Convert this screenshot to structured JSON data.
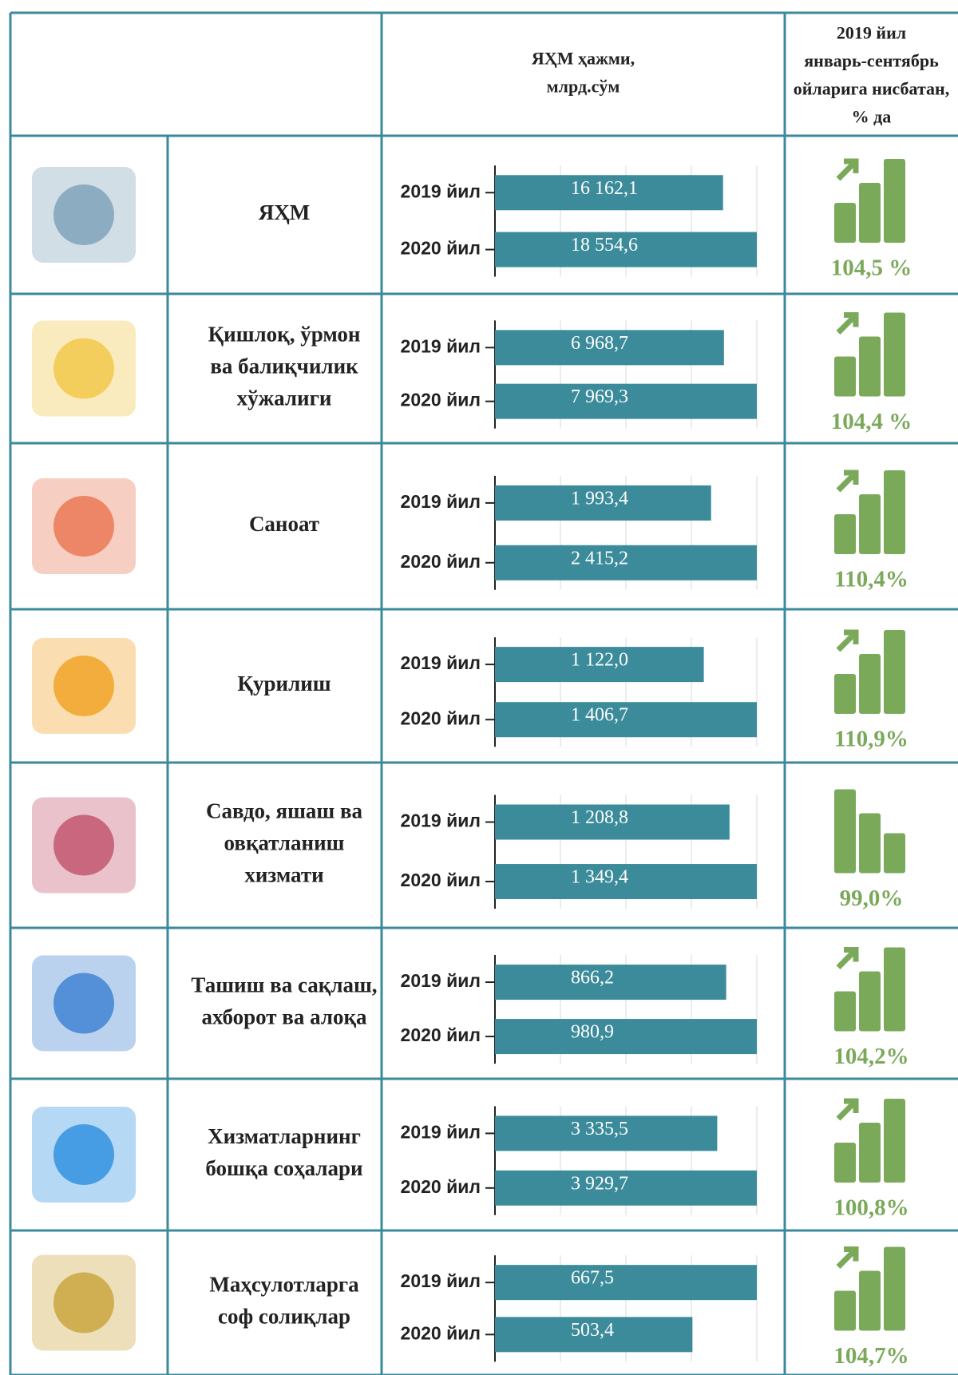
{
  "header": {
    "chart": [
      "ЯҲМ ҳажми,",
      "млрд.сўм"
    ],
    "percent": [
      "2019 йил",
      "январь-сентябрь",
      "ойларига  нисбатан,",
      "% да"
    ]
  },
  "years": [
    "2019 йил",
    "2020 йил"
  ],
  "rows": [
    {
      "name": [
        "ЯҲМ"
      ],
      "values": [
        16162.1,
        18554.6
      ],
      "value_labels": [
        "16 162,1",
        "18 554,6"
      ],
      "percent": "104,5 %"
    },
    {
      "name": [
        "Қишлоқ, ўрмон",
        "ва балиқчилик",
        "хўжалиги"
      ],
      "values": [
        6968.7,
        7969.3
      ],
      "value_labels": [
        "6 968,7",
        "7 969,3"
      ],
      "percent": "104,4 %"
    },
    {
      "name": [
        "Саноат"
      ],
      "values": [
        1993.4,
        2415.2
      ],
      "value_labels": [
        "1 993,4",
        "2 415,2"
      ],
      "percent": "110,4%"
    },
    {
      "name": [
        "Қурилиш"
      ],
      "values": [
        1122.0,
        1406.7
      ],
      "value_labels": [
        "1 122,0",
        "1 406,7"
      ],
      "percent": "110,9%"
    },
    {
      "name": [
        "Савдо, яшаш ва",
        "овқатланиш",
        "хизмати"
      ],
      "values": [
        1208.8,
        1349.4
      ],
      "value_labels": [
        "1 208,8",
        "1 349,4"
      ],
      "percent": "99,0%"
    },
    {
      "name": [
        "Ташиш ва сақлаш,",
        "ахборот ва алоқа"
      ],
      "values": [
        866.2,
        980.9
      ],
      "value_labels": [
        "866,2",
        "980,9"
      ],
      "percent": "104,2%"
    },
    {
      "name": [
        "Хизматларнинг",
        "бошқа соҳалари"
      ],
      "values": [
        3335.5,
        3929.7
      ],
      "value_labels": [
        "3 335,5",
        "3 929,7"
      ],
      "percent": "100,8%"
    },
    {
      "name": [
        "Маҳсулотларга",
        "соф солиқлар"
      ],
      "values": [
        667.5,
        503.4
      ],
      "value_labels": [
        "667,5",
        "503,4"
      ],
      "percent": "104,7%"
    }
  ]
}
